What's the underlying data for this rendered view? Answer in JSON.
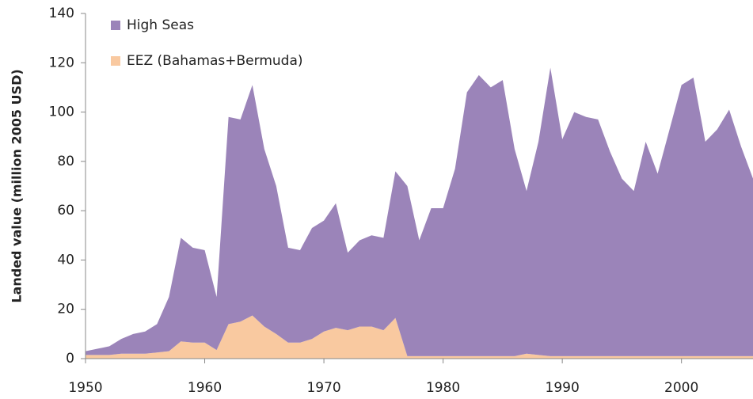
{
  "chart_data": {
    "type": "stacked_area",
    "ylabel": "Landed value (million 2005 USD)",
    "x": [
      1950,
      1951,
      1952,
      1953,
      1954,
      1955,
      1956,
      1957,
      1958,
      1959,
      1960,
      1961,
      1962,
      1963,
      1964,
      1965,
      1966,
      1967,
      1968,
      1969,
      1970,
      1971,
      1972,
      1973,
      1974,
      1975,
      1976,
      1977,
      1978,
      1979,
      1980,
      1981,
      1982,
      1983,
      1984,
      1985,
      1986,
      1987,
      1988,
      1989,
      1990,
      1991,
      1992,
      1993,
      1994,
      1995,
      1996,
      1997,
      1998,
      1999,
      2000,
      2001,
      2002,
      2003,
      2004,
      2005,
      2006
    ],
    "series": [
      {
        "name": "High Seas",
        "color": "#9b84b9",
        "values": [
          1.5,
          2.5,
          3.5,
          6,
          8,
          9,
          11.5,
          22,
          42,
          38.5,
          37.5,
          21.5,
          84,
          82,
          93.5,
          72,
          60,
          38.5,
          37.5,
          45,
          45,
          50.5,
          31.5,
          35,
          37,
          37.5,
          59.5,
          69,
          47,
          60,
          60,
          76,
          107,
          114,
          109,
          112,
          84,
          66,
          86.5,
          117,
          88,
          99,
          97,
          96,
          83,
          72,
          67,
          87,
          74,
          92,
          110,
          113,
          87,
          92,
          100,
          85,
          72
        ]
      },
      {
        "name": "EEZ (Bahamas+Bermuda)",
        "color": "#f9c9a0",
        "values": [
          1.5,
          1.5,
          1.5,
          2,
          2,
          2,
          2.5,
          3,
          7,
          6.5,
          6.5,
          3.5,
          14,
          15,
          17.5,
          13,
          10,
          6.5,
          6.5,
          8,
          11,
          12.5,
          11.5,
          13,
          13,
          11.5,
          16.5,
          1,
          1,
          1,
          1,
          1,
          1,
          1,
          1,
          1,
          1,
          2,
          1.5,
          1,
          1,
          1,
          1,
          1,
          1,
          1,
          1,
          1,
          1,
          1,
          1,
          1,
          1,
          1,
          1,
          1,
          1
        ]
      }
    ],
    "xlim": [
      1950,
      2006
    ],
    "xticks": [
      1950,
      1960,
      1970,
      1980,
      1990,
      2000
    ],
    "ylim": [
      0,
      140
    ],
    "yticks": [
      0,
      20,
      40,
      60,
      80,
      100,
      120,
      140
    ],
    "legend": "upper left"
  }
}
